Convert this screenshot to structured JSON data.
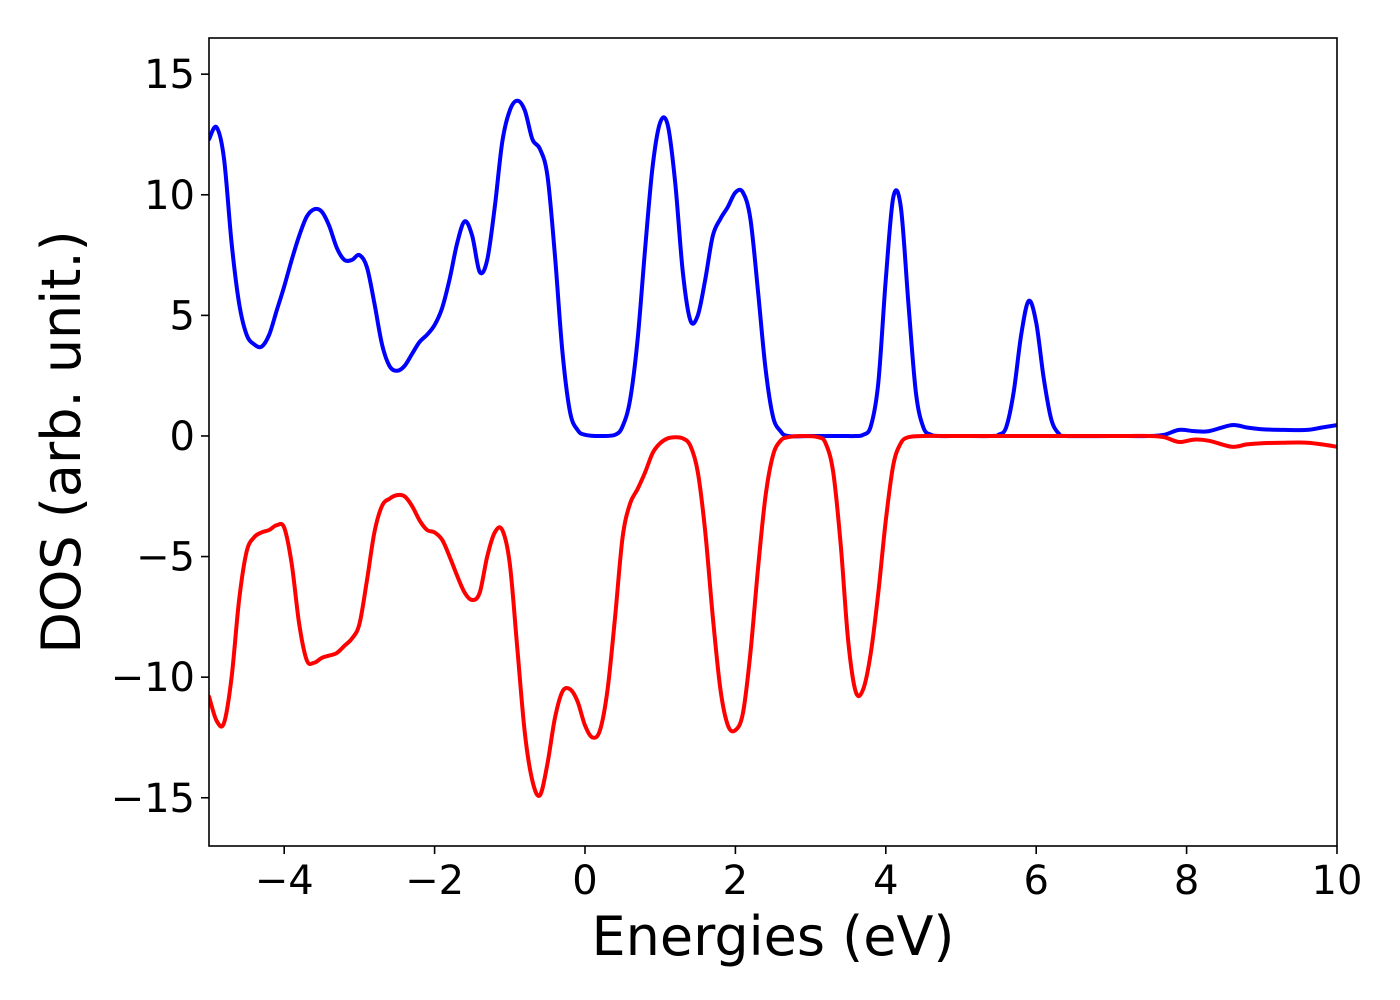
{
  "chart_data": {
    "type": "line",
    "xlabel": "Energies (eV)",
    "ylabel": "DOS (arb. unit.)",
    "xlim": [
      -5,
      10
    ],
    "ylim": [
      -17,
      16.5
    ],
    "xticks": [
      -4,
      -2,
      0,
      2,
      4,
      6,
      8,
      10
    ],
    "yticks": [
      15,
      10,
      5,
      0,
      -5,
      -10,
      -15
    ],
    "xtick_labels": [
      "−4",
      "−2",
      "0",
      "2",
      "4",
      "6",
      "8",
      "10"
    ],
    "ytick_labels": [
      "15",
      "10",
      "5",
      "0",
      "−5",
      "−10",
      "−15"
    ],
    "grid": false,
    "legend": "none",
    "series": [
      {
        "color": "#0000ff",
        "points": [
          [
            -5.0,
            12.3
          ],
          [
            -4.9,
            12.8
          ],
          [
            -4.8,
            11.5
          ],
          [
            -4.7,
            8.0
          ],
          [
            -4.6,
            5.5
          ],
          [
            -4.5,
            4.2
          ],
          [
            -4.4,
            3.8
          ],
          [
            -4.3,
            3.7
          ],
          [
            -4.2,
            4.2
          ],
          [
            -4.1,
            5.2
          ],
          [
            -4.0,
            6.2
          ],
          [
            -3.9,
            7.3
          ],
          [
            -3.8,
            8.3
          ],
          [
            -3.7,
            9.1
          ],
          [
            -3.6,
            9.4
          ],
          [
            -3.5,
            9.3
          ],
          [
            -3.4,
            8.7
          ],
          [
            -3.3,
            7.8
          ],
          [
            -3.2,
            7.3
          ],
          [
            -3.1,
            7.3
          ],
          [
            -3.0,
            7.5
          ],
          [
            -2.9,
            7.0
          ],
          [
            -2.8,
            5.5
          ],
          [
            -2.7,
            3.8
          ],
          [
            -2.6,
            2.9
          ],
          [
            -2.5,
            2.7
          ],
          [
            -2.4,
            2.9
          ],
          [
            -2.3,
            3.4
          ],
          [
            -2.2,
            3.9
          ],
          [
            -2.1,
            4.2
          ],
          [
            -2.0,
            4.6
          ],
          [
            -1.9,
            5.3
          ],
          [
            -1.8,
            6.5
          ],
          [
            -1.7,
            8.0
          ],
          [
            -1.6,
            8.9
          ],
          [
            -1.5,
            8.3
          ],
          [
            -1.4,
            6.8
          ],
          [
            -1.3,
            7.3
          ],
          [
            -1.2,
            9.5
          ],
          [
            -1.1,
            12.2
          ],
          [
            -1.0,
            13.5
          ],
          [
            -0.9,
            13.9
          ],
          [
            -0.8,
            13.5
          ],
          [
            -0.7,
            12.3
          ],
          [
            -0.6,
            11.9
          ],
          [
            -0.5,
            10.8
          ],
          [
            -0.4,
            7.5
          ],
          [
            -0.3,
            3.5
          ],
          [
            -0.2,
            1.0
          ],
          [
            -0.1,
            0.25
          ],
          [
            0.0,
            0.05
          ],
          [
            0.2,
            0.0
          ],
          [
            0.4,
            0.05
          ],
          [
            0.5,
            0.4
          ],
          [
            0.6,
            1.5
          ],
          [
            0.7,
            4.0
          ],
          [
            0.8,
            7.8
          ],
          [
            0.9,
            11.2
          ],
          [
            1.0,
            13.0
          ],
          [
            1.1,
            12.9
          ],
          [
            1.2,
            10.5
          ],
          [
            1.3,
            6.8
          ],
          [
            1.4,
            4.8
          ],
          [
            1.5,
            5.0
          ],
          [
            1.6,
            6.5
          ],
          [
            1.7,
            8.3
          ],
          [
            1.8,
            9.0
          ],
          [
            1.9,
            9.5
          ],
          [
            2.0,
            10.1
          ],
          [
            2.1,
            10.1
          ],
          [
            2.2,
            9.0
          ],
          [
            2.3,
            6.0
          ],
          [
            2.4,
            2.8
          ],
          [
            2.5,
            0.8
          ],
          [
            2.6,
            0.2
          ],
          [
            2.7,
            0.0
          ],
          [
            3.0,
            0.0
          ],
          [
            3.4,
            0.0
          ],
          [
            3.6,
            0.0
          ],
          [
            3.7,
            0.05
          ],
          [
            3.8,
            0.4
          ],
          [
            3.9,
            2.2
          ],
          [
            4.0,
            6.5
          ],
          [
            4.1,
            9.9
          ],
          [
            4.2,
            9.5
          ],
          [
            4.3,
            5.5
          ],
          [
            4.4,
            1.8
          ],
          [
            4.5,
            0.35
          ],
          [
            4.6,
            0.05
          ],
          [
            4.7,
            0.0
          ],
          [
            5.0,
            0.0
          ],
          [
            5.4,
            0.0
          ],
          [
            5.5,
            0.05
          ],
          [
            5.6,
            0.35
          ],
          [
            5.7,
            1.8
          ],
          [
            5.8,
            4.2
          ],
          [
            5.9,
            5.6
          ],
          [
            6.0,
            4.7
          ],
          [
            6.1,
            2.4
          ],
          [
            6.2,
            0.7
          ],
          [
            6.3,
            0.1
          ],
          [
            6.4,
            0.0
          ],
          [
            7.0,
            0.0
          ],
          [
            7.5,
            0.0
          ],
          [
            7.7,
            0.05
          ],
          [
            7.9,
            0.25
          ],
          [
            8.1,
            0.2
          ],
          [
            8.3,
            0.2
          ],
          [
            8.6,
            0.45
          ],
          [
            8.8,
            0.35
          ],
          [
            9.0,
            0.28
          ],
          [
            9.3,
            0.25
          ],
          [
            9.6,
            0.25
          ],
          [
            9.8,
            0.35
          ],
          [
            10.0,
            0.45
          ]
        ]
      },
      {
        "color": "#ff0000",
        "points": [
          [
            -5.0,
            -10.8
          ],
          [
            -4.9,
            -11.8
          ],
          [
            -4.8,
            -11.9
          ],
          [
            -4.7,
            -10.0
          ],
          [
            -4.6,
            -6.8
          ],
          [
            -4.5,
            -4.8
          ],
          [
            -4.4,
            -4.2
          ],
          [
            -4.3,
            -4.0
          ],
          [
            -4.2,
            -3.9
          ],
          [
            -4.1,
            -3.7
          ],
          [
            -4.0,
            -3.8
          ],
          [
            -3.9,
            -5.3
          ],
          [
            -3.8,
            -7.8
          ],
          [
            -3.7,
            -9.3
          ],
          [
            -3.6,
            -9.4
          ],
          [
            -3.5,
            -9.2
          ],
          [
            -3.4,
            -9.1
          ],
          [
            -3.3,
            -9.0
          ],
          [
            -3.2,
            -8.7
          ],
          [
            -3.1,
            -8.4
          ],
          [
            -3.0,
            -7.8
          ],
          [
            -2.9,
            -6.0
          ],
          [
            -2.8,
            -4.0
          ],
          [
            -2.7,
            -2.9
          ],
          [
            -2.6,
            -2.6
          ],
          [
            -2.5,
            -2.45
          ],
          [
            -2.4,
            -2.5
          ],
          [
            -2.3,
            -2.9
          ],
          [
            -2.2,
            -3.5
          ],
          [
            -2.1,
            -3.9
          ],
          [
            -2.0,
            -4.0
          ],
          [
            -1.9,
            -4.3
          ],
          [
            -1.8,
            -5.0
          ],
          [
            -1.7,
            -5.8
          ],
          [
            -1.6,
            -6.5
          ],
          [
            -1.5,
            -6.8
          ],
          [
            -1.4,
            -6.5
          ],
          [
            -1.3,
            -5.0
          ],
          [
            -1.2,
            -4.0
          ],
          [
            -1.1,
            -3.9
          ],
          [
            -1.0,
            -5.3
          ],
          [
            -0.9,
            -8.8
          ],
          [
            -0.8,
            -12.3
          ],
          [
            -0.7,
            -14.3
          ],
          [
            -0.6,
            -14.9
          ],
          [
            -0.5,
            -13.6
          ],
          [
            -0.4,
            -11.7
          ],
          [
            -0.3,
            -10.6
          ],
          [
            -0.2,
            -10.5
          ],
          [
            -0.1,
            -11.0
          ],
          [
            0.0,
            -12.0
          ],
          [
            0.1,
            -12.5
          ],
          [
            0.2,
            -12.2
          ],
          [
            0.3,
            -10.5
          ],
          [
            0.4,
            -7.5
          ],
          [
            0.5,
            -4.2
          ],
          [
            0.6,
            -2.8
          ],
          [
            0.7,
            -2.2
          ],
          [
            0.8,
            -1.5
          ],
          [
            0.9,
            -0.7
          ],
          [
            1.0,
            -0.3
          ],
          [
            1.1,
            -0.1
          ],
          [
            1.2,
            -0.05
          ],
          [
            1.3,
            -0.1
          ],
          [
            1.4,
            -0.4
          ],
          [
            1.5,
            -1.5
          ],
          [
            1.6,
            -4.0
          ],
          [
            1.7,
            -7.5
          ],
          [
            1.8,
            -10.5
          ],
          [
            1.9,
            -12.0
          ],
          [
            2.0,
            -12.2
          ],
          [
            2.1,
            -11.5
          ],
          [
            2.2,
            -9.0
          ],
          [
            2.3,
            -5.5
          ],
          [
            2.4,
            -2.5
          ],
          [
            2.5,
            -0.8
          ],
          [
            2.6,
            -0.2
          ],
          [
            2.7,
            -0.05
          ],
          [
            2.9,
            0.0
          ],
          [
            3.1,
            -0.05
          ],
          [
            3.2,
            -0.3
          ],
          [
            3.3,
            -1.5
          ],
          [
            3.4,
            -4.5
          ],
          [
            3.5,
            -8.5
          ],
          [
            3.6,
            -10.6
          ],
          [
            3.7,
            -10.5
          ],
          [
            3.8,
            -9.0
          ],
          [
            3.9,
            -6.5
          ],
          [
            4.0,
            -3.5
          ],
          [
            4.1,
            -1.2
          ],
          [
            4.2,
            -0.3
          ],
          [
            4.3,
            -0.05
          ],
          [
            4.5,
            0.0
          ],
          [
            5.0,
            0.0
          ],
          [
            6.0,
            0.0
          ],
          [
            7.0,
            0.0
          ],
          [
            7.5,
            0.0
          ],
          [
            7.7,
            -0.05
          ],
          [
            7.9,
            -0.25
          ],
          [
            8.1,
            -0.15
          ],
          [
            8.3,
            -0.2
          ],
          [
            8.6,
            -0.45
          ],
          [
            8.8,
            -0.35
          ],
          [
            9.0,
            -0.3
          ],
          [
            9.3,
            -0.28
          ],
          [
            9.6,
            -0.28
          ],
          [
            9.8,
            -0.35
          ],
          [
            10.0,
            -0.45
          ]
        ]
      }
    ]
  }
}
